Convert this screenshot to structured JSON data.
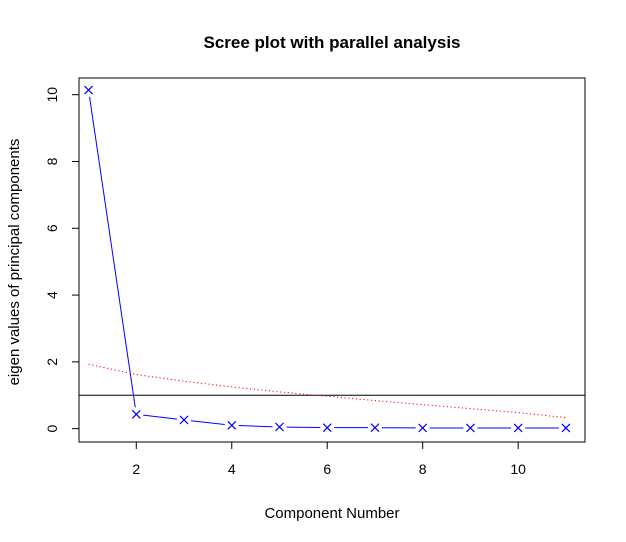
{
  "chart_data": {
    "type": "line",
    "title": "Scree plot with parallel analysis",
    "xlabel": "Component Number",
    "ylabel": "eigen values of principal components",
    "xlim": [
      0.8,
      11.4
    ],
    "ylim": [
      -0.4,
      10.5
    ],
    "xticks": [
      2,
      4,
      6,
      8,
      10
    ],
    "yticks": [
      0,
      2,
      4,
      6,
      8,
      10
    ],
    "grid": false,
    "reference_line": 1,
    "series": [
      {
        "style": "points-and-lines",
        "marker": "x",
        "color": "#0000ff",
        "x": [
          1,
          2,
          3,
          4,
          5,
          6,
          7,
          8,
          9,
          10,
          11
        ],
        "values": [
          10.14,
          0.43,
          0.26,
          0.1,
          0.05,
          0.03,
          0.03,
          0.02,
          0.02,
          0.02,
          0.02
        ]
      },
      {
        "style": "dotted-line",
        "color": "#ff0000",
        "x": [
          1,
          2,
          3,
          4,
          5,
          6,
          7,
          8,
          9,
          10,
          11
        ],
        "values": [
          1.93,
          1.62,
          1.42,
          1.25,
          1.1,
          0.97,
          0.84,
          0.72,
          0.6,
          0.48,
          0.33
        ]
      }
    ]
  }
}
